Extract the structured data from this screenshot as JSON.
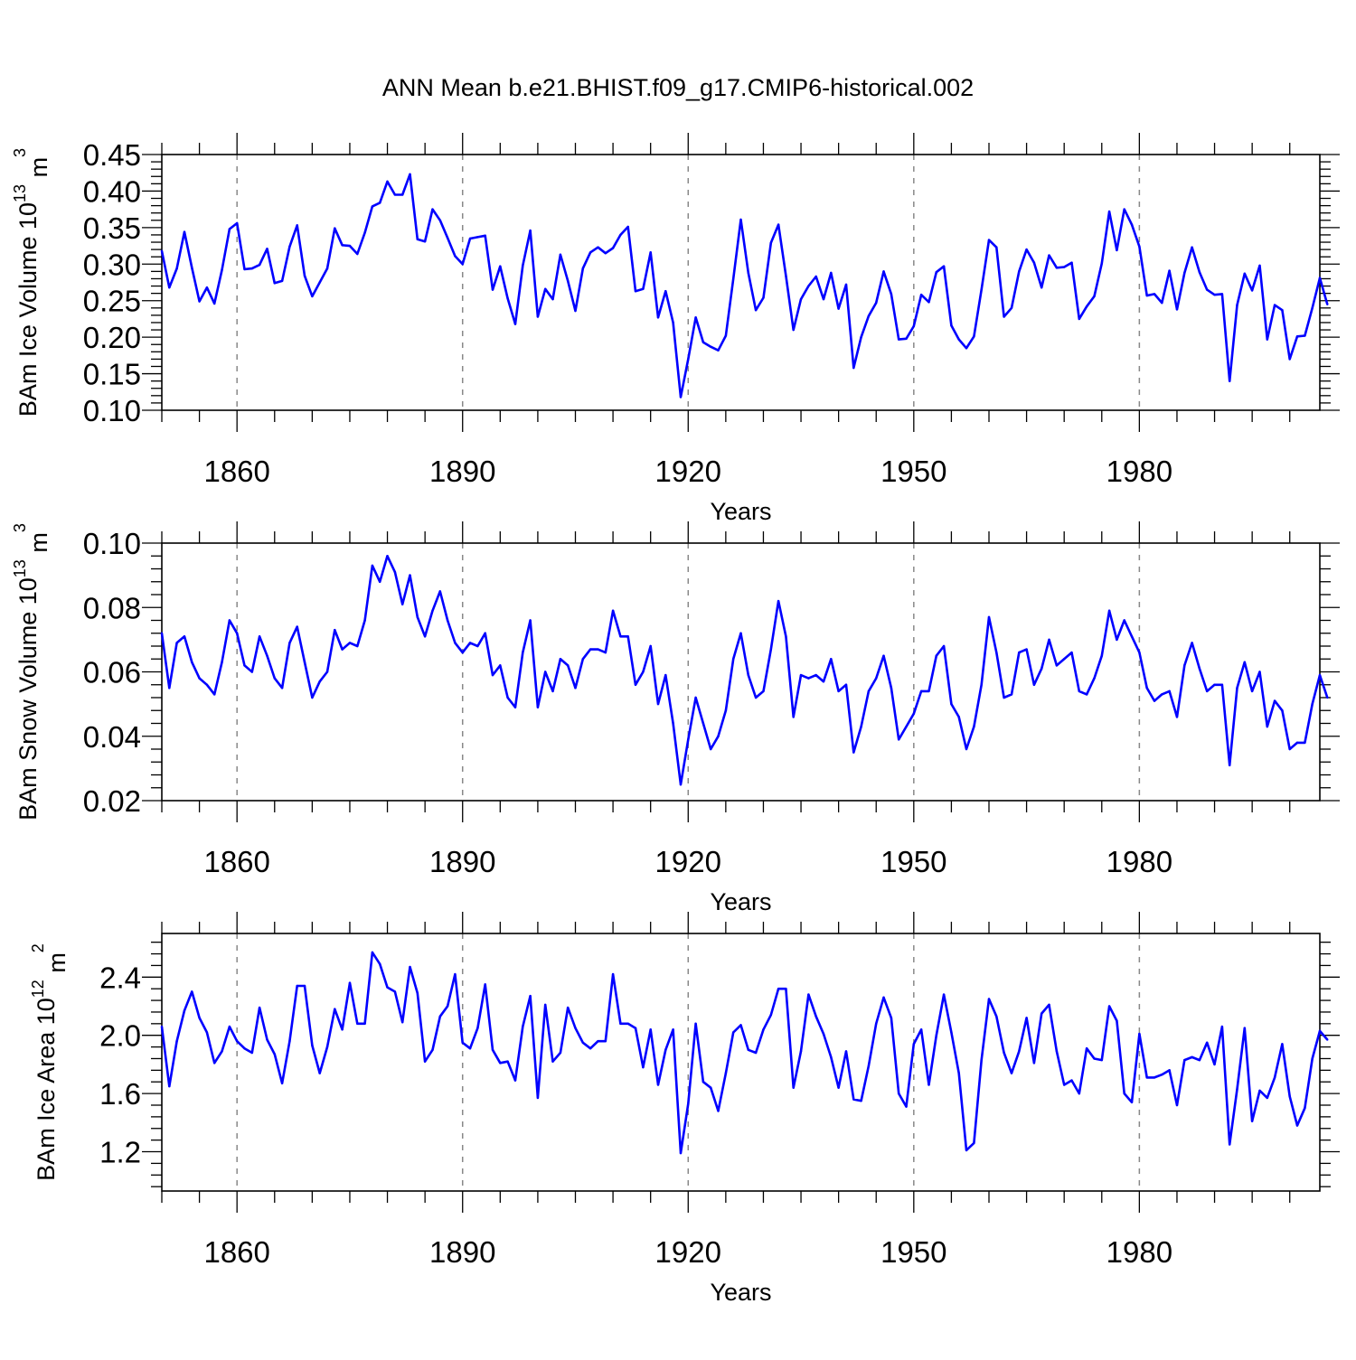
{
  "title": "ANN Mean b.e21.BHIST.f09_g17.CMIP6-historical.002",
  "colors": {
    "series": "#0000ff",
    "grid": "#888888"
  },
  "chart_data": [
    {
      "type": "line",
      "ylabel": "BAm Ice Volume 10",
      "ylabel_exp": "13",
      "ylabel_unit": " m",
      "ylabel_unit_exp": "3",
      "xlabel": "Years",
      "xlim": [
        1850,
        2004
      ],
      "ylim": [
        0.1,
        0.45
      ],
      "xticks": [
        1860,
        1890,
        1920,
        1950,
        1980
      ],
      "yticks": [
        "0.10",
        "0.15",
        "0.20",
        "0.25",
        "0.30",
        "0.35",
        "0.40",
        "0.45"
      ],
      "grid": "vertical dashed at major x ticks",
      "x_start": 1850,
      "values": [
        0.318,
        0.268,
        0.294,
        0.344,
        0.295,
        0.249,
        0.268,
        0.246,
        0.292,
        0.348,
        0.356,
        0.293,
        0.294,
        0.299,
        0.321,
        0.274,
        0.277,
        0.324,
        0.353,
        0.284,
        0.256,
        0.275,
        0.294,
        0.349,
        0.326,
        0.325,
        0.314,
        0.343,
        0.379,
        0.384,
        0.413,
        0.395,
        0.395,
        0.423,
        0.334,
        0.331,
        0.375,
        0.36,
        0.336,
        0.311,
        0.3,
        0.335,
        0.337,
        0.339,
        0.265,
        0.297,
        0.253,
        0.218,
        0.298,
        0.346,
        0.228,
        0.266,
        0.252,
        0.313,
        0.277,
        0.236,
        0.294,
        0.316,
        0.323,
        0.315,
        0.322,
        0.34,
        0.351,
        0.263,
        0.266,
        0.316,
        0.227,
        0.263,
        0.22,
        0.118,
        0.17,
        0.227,
        0.193,
        0.187,
        0.182,
        0.202,
        0.28,
        0.361,
        0.288,
        0.237,
        0.254,
        0.329,
        0.354,
        0.284,
        0.21,
        0.252,
        0.27,
        0.283,
        0.252,
        0.288,
        0.239,
        0.272,
        0.158,
        0.2,
        0.229,
        0.247,
        0.29,
        0.259,
        0.197,
        0.198,
        0.215,
        0.258,
        0.248,
        0.289,
        0.297,
        0.216,
        0.197,
        0.185,
        0.201,
        0.265,
        0.333,
        0.323,
        0.228,
        0.24,
        0.29,
        0.32,
        0.302,
        0.268,
        0.312,
        0.295,
        0.296,
        0.302,
        0.225,
        0.242,
        0.256,
        0.301,
        0.372,
        0.319,
        0.375,
        0.354,
        0.324,
        0.257,
        0.259,
        0.247,
        0.291,
        0.238,
        0.288,
        0.323,
        0.289,
        0.265,
        0.258,
        0.259,
        0.14,
        0.244,
        0.287,
        0.264,
        0.298,
        0.197,
        0.244,
        0.237,
        0.17,
        0.201,
        0.202,
        0.24,
        0.281,
        0.245
      ]
    },
    {
      "type": "line",
      "ylabel": "BAm Snow Volume 10",
      "ylabel_exp": "13",
      "ylabel_unit": " m",
      "ylabel_unit_exp": "3",
      "xlabel": "Years",
      "xlim": [
        1850,
        2004
      ],
      "ylim": [
        0.02,
        0.1
      ],
      "xticks": [
        1860,
        1890,
        1920,
        1950,
        1980
      ],
      "yticks": [
        "0.02",
        "0.04",
        "0.06",
        "0.08",
        "0.10"
      ],
      "grid": "vertical dashed at major x ticks",
      "x_start": 1850,
      "values": [
        0.072,
        0.055,
        0.069,
        0.071,
        0.063,
        0.058,
        0.056,
        0.053,
        0.063,
        0.076,
        0.072,
        0.062,
        0.06,
        0.071,
        0.065,
        0.058,
        0.055,
        0.069,
        0.074,
        0.063,
        0.052,
        0.057,
        0.06,
        0.073,
        0.067,
        0.069,
        0.068,
        0.076,
        0.093,
        0.088,
        0.096,
        0.091,
        0.081,
        0.09,
        0.077,
        0.071,
        0.079,
        0.085,
        0.076,
        0.069,
        0.066,
        0.069,
        0.068,
        0.072,
        0.059,
        0.062,
        0.052,
        0.049,
        0.066,
        0.076,
        0.049,
        0.06,
        0.054,
        0.064,
        0.062,
        0.055,
        0.064,
        0.067,
        0.067,
        0.066,
        0.079,
        0.071,
        0.071,
        0.056,
        0.06,
        0.068,
        0.05,
        0.059,
        0.044,
        0.025,
        0.039,
        0.052,
        0.044,
        0.036,
        0.04,
        0.048,
        0.064,
        0.072,
        0.059,
        0.052,
        0.054,
        0.067,
        0.082,
        0.071,
        0.046,
        0.059,
        0.058,
        0.059,
        0.057,
        0.064,
        0.054,
        0.056,
        0.035,
        0.043,
        0.054,
        0.058,
        0.065,
        0.055,
        0.039,
        0.043,
        0.047,
        0.054,
        0.054,
        0.065,
        0.068,
        0.05,
        0.046,
        0.036,
        0.043,
        0.056,
        0.077,
        0.066,
        0.052,
        0.053,
        0.066,
        0.067,
        0.056,
        0.061,
        0.07,
        0.062,
        0.064,
        0.066,
        0.054,
        0.053,
        0.058,
        0.065,
        0.079,
        0.07,
        0.076,
        0.071,
        0.066,
        0.055,
        0.051,
        0.053,
        0.054,
        0.046,
        0.062,
        0.069,
        0.061,
        0.054,
        0.056,
        0.056,
        0.031,
        0.055,
        0.063,
        0.054,
        0.06,
        0.043,
        0.051,
        0.048,
        0.036,
        0.038,
        0.038,
        0.05,
        0.059,
        0.052
      ]
    },
    {
      "type": "line",
      "ylabel": "BAm Ice Area 10",
      "ylabel_exp": "12",
      "ylabel_unit": " m",
      "ylabel_unit_exp": "2",
      "xlabel": "Years",
      "xlim": [
        1850,
        2004
      ],
      "ylim": [
        0.93,
        2.7
      ],
      "xticks": [
        1860,
        1890,
        1920,
        1950,
        1980
      ],
      "yticks": [
        "1.2",
        "1.6",
        "2.0",
        "2.4"
      ],
      "grid": "vertical dashed at major x ticks",
      "x_start": 1850,
      "values": [
        2.06,
        1.65,
        1.96,
        2.17,
        2.3,
        2.12,
        2.02,
        1.81,
        1.89,
        2.06,
        1.96,
        1.91,
        1.88,
        2.19,
        1.97,
        1.87,
        1.67,
        1.96,
        2.34,
        2.34,
        1.93,
        1.74,
        1.92,
        2.18,
        2.04,
        2.36,
        2.08,
        2.08,
        2.57,
        2.49,
        2.33,
        2.3,
        2.09,
        2.47,
        2.29,
        1.82,
        1.9,
        2.13,
        2.2,
        2.42,
        1.95,
        1.91,
        2.05,
        2.35,
        1.9,
        1.81,
        1.82,
        1.69,
        2.06,
        2.27,
        1.57,
        2.21,
        1.82,
        1.88,
        2.19,
        2.05,
        1.95,
        1.91,
        1.96,
        1.96,
        2.42,
        2.08,
        2.08,
        2.05,
        1.78,
        2.04,
        1.66,
        1.9,
        2.04,
        1.19,
        1.53,
        2.08,
        1.68,
        1.64,
        1.48,
        1.74,
        2.02,
        2.07,
        1.9,
        1.88,
        2.04,
        2.14,
        2.32,
        2.32,
        1.64,
        1.89,
        2.28,
        2.13,
        2.01,
        1.85,
        1.64,
        1.89,
        1.56,
        1.55,
        1.79,
        2.08,
        2.26,
        2.12,
        1.6,
        1.51,
        1.94,
        2.04,
        1.66,
        2.0,
        2.28,
        2.02,
        1.74,
        1.21,
        1.26,
        1.83,
        2.25,
        2.13,
        1.88,
        1.74,
        1.89,
        2.12,
        1.81,
        2.15,
        2.21,
        1.89,
        1.66,
        1.69,
        1.6,
        1.91,
        1.84,
        1.83,
        2.2,
        2.1,
        1.6,
        1.54,
        2.01,
        1.71,
        1.71,
        1.73,
        1.76,
        1.52,
        1.83,
        1.85,
        1.83,
        1.95,
        1.8,
        2.06,
        1.25,
        1.63,
        2.05,
        1.41,
        1.62,
        1.57,
        1.71,
        1.94,
        1.58,
        1.38,
        1.5,
        1.84,
        2.03,
        1.97
      ]
    }
  ]
}
